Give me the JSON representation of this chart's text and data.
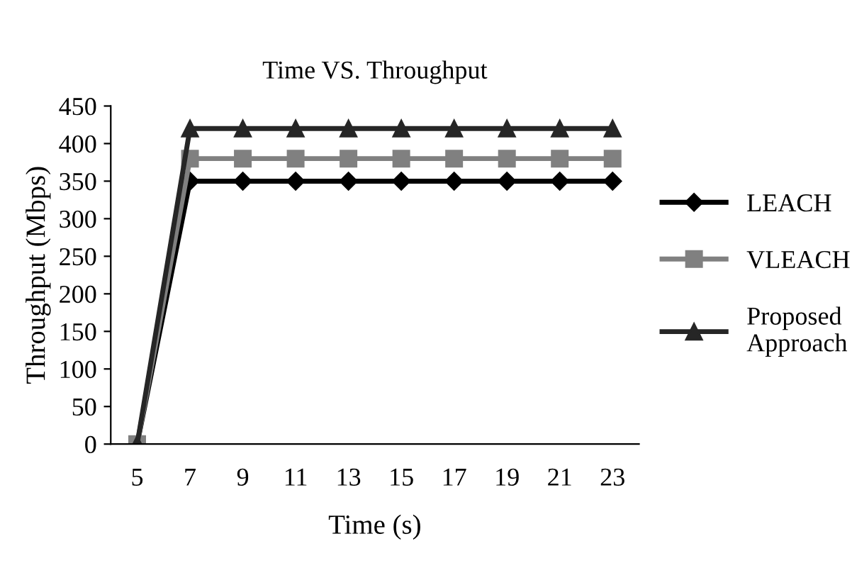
{
  "chart_data": {
    "type": "line",
    "title": "Time VS. Throughput",
    "xlabel": "Time (s)",
    "ylabel": "Throughput (Mbps)",
    "categories": [
      "5",
      "7",
      "9",
      "11",
      "13",
      "15",
      "17",
      "19",
      "21",
      "23"
    ],
    "series": [
      {
        "name": "LEACH",
        "color": "#000000",
        "marker": "diamond",
        "values": [
          0,
          350,
          350,
          350,
          350,
          350,
          350,
          350,
          350,
          350
        ]
      },
      {
        "name": "VLEACH",
        "color": "#808080",
        "marker": "square",
        "values": [
          0,
          380,
          380,
          380,
          380,
          380,
          380,
          380,
          380,
          380
        ]
      },
      {
        "name": "Proposed Approach",
        "color": "#262626",
        "marker": "triangle",
        "values": [
          0,
          420,
          420,
          420,
          420,
          420,
          420,
          420,
          420,
          420
        ]
      }
    ],
    "ylim": [
      0,
      450
    ],
    "yticks": [
      0,
      50,
      100,
      150,
      200,
      250,
      300,
      350,
      400,
      450
    ],
    "grid": false,
    "legend": "right",
    "line_style": "solid"
  }
}
